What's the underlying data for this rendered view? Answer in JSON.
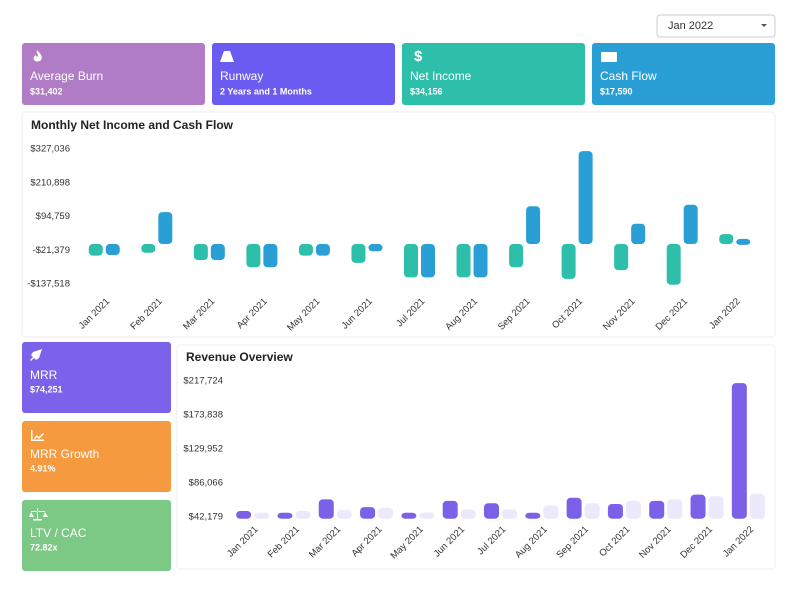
{
  "dropdown": "Jan 2022",
  "cards": [
    {
      "title": "Average Burn",
      "value": "$31,402",
      "color": "#b07cc6"
    },
    {
      "title": "Runway",
      "value": "2 Years and 1 Months",
      "color": "#6a5cf0"
    },
    {
      "title": "Net Income",
      "value": "$34,156",
      "color": "#2ebfaa"
    },
    {
      "title": "Cash Flow",
      "value": "$17,590",
      "color": "#2a9fd6"
    }
  ],
  "side_cards": [
    {
      "title": "MRR",
      "value": "$74,251",
      "color": "#7a62ea"
    },
    {
      "title": "MRR Growth",
      "value": "4.91%",
      "color": "#f59a3e"
    },
    {
      "title": "LTV / CAC",
      "value": "72.82x",
      "color": "#7cc885"
    }
  ],
  "chart_data": [
    {
      "type": "floating-bar",
      "title": "Monthly Net Income and Cash Flow",
      "categories": [
        "Jan 2021",
        "Feb 2021",
        "Mar 2021",
        "Apr 2021",
        "May 2021",
        "Jun 2021",
        "Jul 2021",
        "Aug 2021",
        "Sep 2021",
        "Oct 2021",
        "Nov 2021",
        "Dec 2021",
        "Jan 2022"
      ],
      "series": [
        {
          "color": "#2ebfaa",
          "values": [
            -40000,
            -30000,
            -55000,
            -80000,
            -40000,
            -65000,
            -115000,
            -115000,
            -80000,
            -120000,
            -90000,
            -140000,
            34156
          ]
        },
        {
          "color": "#2a9fd6",
          "values": [
            -38000,
            110000,
            -55000,
            -80000,
            -40000,
            -25000,
            -115000,
            -115000,
            130000,
            320000,
            70000,
            135000,
            17590
          ]
        }
      ],
      "ylim": [
        -150000,
        345000
      ],
      "yticks": [
        {
          "value": 327036,
          "label": "$327,036"
        },
        {
          "value": 210898,
          "label": "$210,898"
        },
        {
          "value": 94759,
          "label": "$94,759"
        },
        {
          "value": -21379,
          "label": "-$21,379"
        },
        {
          "value": -137518,
          "label": "-$137,518"
        }
      ],
      "grid": false
    },
    {
      "type": "bar",
      "title": "Revenue Overview",
      "categories": [
        "Jan 2021",
        "Feb 2021",
        "Mar 2021",
        "Apr 2021",
        "May 2021",
        "Jun 2021",
        "Jul 2021",
        "Aug 2021",
        "Sep 2021",
        "Oct 2021",
        "Nov 2021",
        "Dec 2021",
        "Jan 2022"
      ],
      "series": [
        {
          "color": "#7b61e8",
          "values": [
            50000,
            45000,
            65000,
            55000,
            46000,
            63000,
            60000,
            46000,
            67000,
            59000,
            63000,
            71000,
            215000
          ]
        },
        {
          "color": "#ece9fb",
          "values": [
            45000,
            50000,
            51000,
            54000,
            48000,
            52000,
            52000,
            57000,
            60000,
            63000,
            65000,
            69000,
            72000
          ]
        }
      ],
      "ylim": [
        40000,
        222000
      ],
      "yticks": [
        {
          "value": 217724,
          "label": "$217,724"
        },
        {
          "value": 173838,
          "label": "$173,838"
        },
        {
          "value": 129952,
          "label": "$129,952"
        },
        {
          "value": 86066,
          "label": "$86,066"
        },
        {
          "value": 42179,
          "label": "$42,179"
        }
      ],
      "grid": false
    }
  ]
}
